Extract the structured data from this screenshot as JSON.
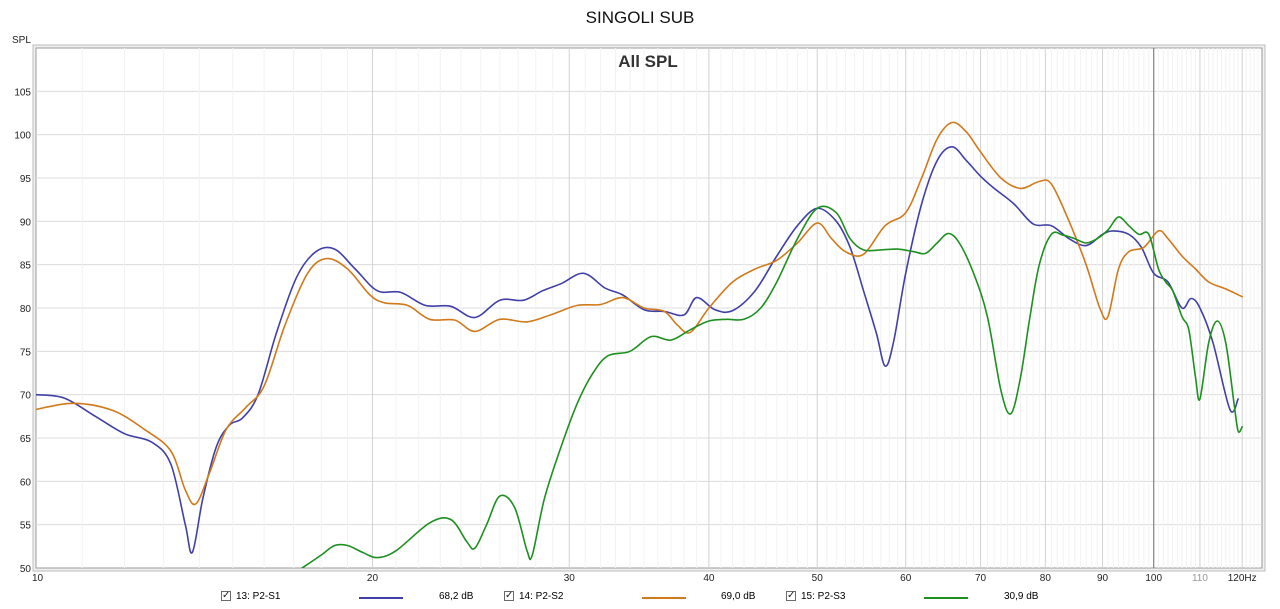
{
  "title": "SINGOLI SUB",
  "chart_data": {
    "type": "line",
    "title": "All SPL",
    "ylabel": "SPL",
    "xlabel": "",
    "xscale": "log",
    "xunit": "Hz",
    "xlim": [
      10,
      125
    ],
    "ylim": [
      50,
      110
    ],
    "grid": true,
    "y_ticks": [
      50,
      55,
      60,
      65,
      70,
      75,
      80,
      85,
      90,
      95,
      100,
      105
    ],
    "x_tick_labels": [
      {
        "value": 10,
        "label": "10"
      },
      {
        "value": 20,
        "label": "20"
      },
      {
        "value": 30,
        "label": "30"
      },
      {
        "value": 40,
        "label": "40"
      },
      {
        "value": 50,
        "label": "50"
      },
      {
        "value": 60,
        "label": "60"
      },
      {
        "value": 70,
        "label": "70"
      },
      {
        "value": 80,
        "label": "80"
      },
      {
        "value": 90,
        "label": "90"
      },
      {
        "value": 100,
        "label": "100"
      },
      {
        "value": 110,
        "label": "110"
      },
      {
        "value": 120,
        "label": "120Hz"
      }
    ],
    "series": [
      {
        "name": "13: P2-S1",
        "color": "#4040a8",
        "value_label": "68,2 dB",
        "checked": true,
        "points": [
          [
            10,
            70
          ],
          [
            10.6,
            69.6
          ],
          [
            11.3,
            67.5
          ],
          [
            12,
            65.5
          ],
          [
            12.7,
            64.5
          ],
          [
            13.2,
            62
          ],
          [
            13.6,
            55
          ],
          [
            13.8,
            51.8
          ],
          [
            14.1,
            58
          ],
          [
            14.5,
            64
          ],
          [
            14.9,
            66.5
          ],
          [
            15.3,
            67.3
          ],
          [
            15.8,
            70
          ],
          [
            16.4,
            77
          ],
          [
            17.1,
            83.5
          ],
          [
            17.8,
            86.5
          ],
          [
            18.5,
            86.8
          ],
          [
            19.3,
            84.5
          ],
          [
            20.2,
            82
          ],
          [
            21.2,
            81.8
          ],
          [
            22.3,
            80.3
          ],
          [
            23.5,
            80.2
          ],
          [
            24.7,
            78.9
          ],
          [
            26,
            80.9
          ],
          [
            27.3,
            80.9
          ],
          [
            28.4,
            82
          ],
          [
            29.5,
            82.8
          ],
          [
            30.9,
            84
          ],
          [
            32.3,
            82.3
          ],
          [
            33.5,
            81.5
          ],
          [
            35,
            79.8
          ],
          [
            36.5,
            79.6
          ],
          [
            38,
            79.2
          ],
          [
            39,
            81.2
          ],
          [
            40.5,
            79.8
          ],
          [
            42,
            79.7
          ],
          [
            44,
            82
          ],
          [
            46,
            86
          ],
          [
            48,
            89.5
          ],
          [
            50,
            91.5
          ],
          [
            52,
            90
          ],
          [
            53.5,
            87
          ],
          [
            55,
            82
          ],
          [
            56.5,
            77
          ],
          [
            57.5,
            73.3
          ],
          [
            58.5,
            76
          ],
          [
            60,
            84
          ],
          [
            62,
            92
          ],
          [
            64,
            97
          ],
          [
            66,
            98.6
          ],
          [
            68,
            97
          ],
          [
            70,
            95.2
          ],
          [
            72,
            93.8
          ],
          [
            75,
            92
          ],
          [
            78,
            89.7
          ],
          [
            81,
            89.5
          ],
          [
            84,
            88
          ],
          [
            87,
            87.2
          ],
          [
            90,
            88.5
          ],
          [
            92,
            88.9
          ],
          [
            95,
            88.5
          ],
          [
            97.5,
            87
          ],
          [
            100,
            84
          ],
          [
            103,
            83
          ],
          [
            106,
            80
          ],
          [
            108,
            81.1
          ],
          [
            110,
            80
          ],
          [
            113,
            76
          ],
          [
            117,
            68.3
          ],
          [
            119,
            69.5
          ]
        ]
      },
      {
        "name": "14: P2-S2",
        "color": "#d07a1c",
        "value_label": "69,0 dB",
        "checked": true,
        "points": [
          [
            10,
            68.3
          ],
          [
            10.8,
            69
          ],
          [
            11.7,
            68.2
          ],
          [
            12.5,
            66
          ],
          [
            13.2,
            63.5
          ],
          [
            13.6,
            59
          ],
          [
            13.9,
            57.4
          ],
          [
            14.3,
            61
          ],
          [
            14.8,
            66
          ],
          [
            15.4,
            68.5
          ],
          [
            16,
            71
          ],
          [
            16.7,
            78
          ],
          [
            17.5,
            84
          ],
          [
            18.2,
            85.7
          ],
          [
            19,
            84.5
          ],
          [
            19.9,
            81.5
          ],
          [
            20.5,
            80.6
          ],
          [
            21.5,
            80.3
          ],
          [
            22.5,
            78.7
          ],
          [
            23.7,
            78.6
          ],
          [
            24.7,
            77.3
          ],
          [
            26,
            78.7
          ],
          [
            27.5,
            78.4
          ],
          [
            29,
            79.3
          ],
          [
            30.5,
            80.3
          ],
          [
            32,
            80.4
          ],
          [
            33.5,
            81.2
          ],
          [
            35,
            80
          ],
          [
            36.5,
            79.6
          ],
          [
            37.5,
            78
          ],
          [
            38.5,
            77.2
          ],
          [
            40,
            80
          ],
          [
            42,
            83
          ],
          [
            44,
            84.5
          ],
          [
            46,
            85.5
          ],
          [
            48,
            87.5
          ],
          [
            50,
            89.8
          ],
          [
            51.5,
            88
          ],
          [
            53,
            86.5
          ],
          [
            55,
            86.2
          ],
          [
            57.5,
            89.5
          ],
          [
            60,
            91
          ],
          [
            62,
            95
          ],
          [
            64,
            99.5
          ],
          [
            66,
            101.4
          ],
          [
            68,
            100.3
          ],
          [
            70,
            98
          ],
          [
            73,
            95
          ],
          [
            76,
            93.8
          ],
          [
            79,
            94.6
          ],
          [
            81,
            94.3
          ],
          [
            84,
            90
          ],
          [
            87,
            85
          ],
          [
            89.5,
            80
          ],
          [
            91,
            79
          ],
          [
            93,
            84.5
          ],
          [
            95,
            86.5
          ],
          [
            98,
            87
          ],
          [
            101,
            88.9
          ],
          [
            103,
            88
          ],
          [
            106,
            86
          ],
          [
            109,
            84.5
          ],
          [
            112,
            83
          ],
          [
            116,
            82.2
          ],
          [
            120,
            81.3
          ]
        ]
      },
      {
        "name": "15: P2-S3",
        "color": "#1e9020",
        "value_label": "30,9 dB",
        "checked": true,
        "points": [
          [
            17.3,
            50
          ],
          [
            18,
            51.5
          ],
          [
            18.5,
            52.6
          ],
          [
            19,
            52.6
          ],
          [
            19.6,
            51.8
          ],
          [
            20.2,
            51.2
          ],
          [
            21,
            52
          ],
          [
            22.5,
            55.2
          ],
          [
            23.5,
            55.6
          ],
          [
            24.3,
            53
          ],
          [
            24.7,
            52.3
          ],
          [
            25.3,
            55
          ],
          [
            26,
            58.3
          ],
          [
            26.8,
            57
          ],
          [
            27.5,
            52
          ],
          [
            27.8,
            51.5
          ],
          [
            28.5,
            58
          ],
          [
            29.5,
            64
          ],
          [
            30.5,
            69
          ],
          [
            31.5,
            72.5
          ],
          [
            32.5,
            74.5
          ],
          [
            34,
            75
          ],
          [
            35.5,
            76.7
          ],
          [
            37,
            76.3
          ],
          [
            38.5,
            77.5
          ],
          [
            40,
            78.5
          ],
          [
            41.5,
            78.7
          ],
          [
            43,
            78.7
          ],
          [
            44.5,
            80
          ],
          [
            46,
            83
          ],
          [
            48,
            88
          ],
          [
            50,
            91.5
          ],
          [
            52,
            91
          ],
          [
            53.5,
            88
          ],
          [
            55,
            86.7
          ],
          [
            57,
            86.7
          ],
          [
            59,
            86.8
          ],
          [
            61,
            86.5
          ],
          [
            62.5,
            86.3
          ],
          [
            64,
            87.5
          ],
          [
            65.5,
            88.6
          ],
          [
            67,
            87.5
          ],
          [
            69,
            84
          ],
          [
            71,
            79
          ],
          [
            73,
            70.5
          ],
          [
            74.5,
            67.8
          ],
          [
            76,
            72
          ],
          [
            77.5,
            79
          ],
          [
            79,
            85
          ],
          [
            81,
            88.5
          ],
          [
            83,
            88.4
          ],
          [
            85,
            88
          ],
          [
            87,
            87.5
          ],
          [
            89,
            88
          ],
          [
            91,
            89
          ],
          [
            93,
            90.5
          ],
          [
            95,
            89.5
          ],
          [
            97,
            88.5
          ],
          [
            99,
            88.5
          ],
          [
            101,
            84.5
          ],
          [
            102.5,
            83
          ],
          [
            104,
            82
          ],
          [
            106,
            79
          ],
          [
            107.5,
            77.5
          ],
          [
            109,
            72
          ],
          [
            110,
            69.5
          ],
          [
            112,
            76
          ],
          [
            114,
            78.5
          ],
          [
            116,
            76
          ],
          [
            118,
            69
          ],
          [
            119,
            65.8
          ],
          [
            120,
            66.3
          ]
        ]
      }
    ]
  }
}
